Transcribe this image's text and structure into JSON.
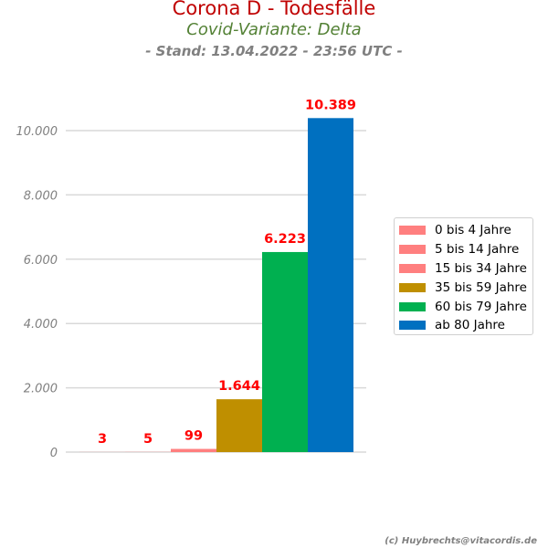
{
  "header": {
    "title": "Corona D - Todesfälle",
    "subtitle": "Covid-Variante: Delta",
    "stand": "- Stand: 13.04.2022 - 23:56 UTC -"
  },
  "footer": {
    "credit": "(c) Huybrechts@vitacordis.de"
  },
  "chart_data": {
    "type": "bar",
    "title": "Corona D - Todesfälle",
    "subtitle": "Covid-Variante: Delta",
    "xlabel": "",
    "ylabel": "",
    "ylim": [
      0,
      10389
    ],
    "grid": true,
    "legend_position": "right",
    "yticks": [
      0,
      2000,
      4000,
      6000,
      8000,
      10000
    ],
    "ytick_labels": [
      "0",
      "2.000",
      "4.000",
      "6.000",
      "8.000",
      "10.000"
    ],
    "categories": [
      "0 bis 4 Jahre",
      "5 bis 14 Jahre",
      "15 bis 34 Jahre",
      "35 bis 59 Jahre",
      "60 bis 79 Jahre",
      "ab 80 Jahre"
    ],
    "values": [
      3,
      5,
      99,
      1644,
      6223,
      10389
    ],
    "data_labels": [
      "3",
      "5",
      "99",
      "1.644",
      "6.223",
      "10.389"
    ],
    "colors": [
      "#ff7f7f",
      "#ff7f7f",
      "#ff7f7f",
      "#bf8f00",
      "#00b050",
      "#0070c0"
    ],
    "label_color": "#ff0000"
  }
}
